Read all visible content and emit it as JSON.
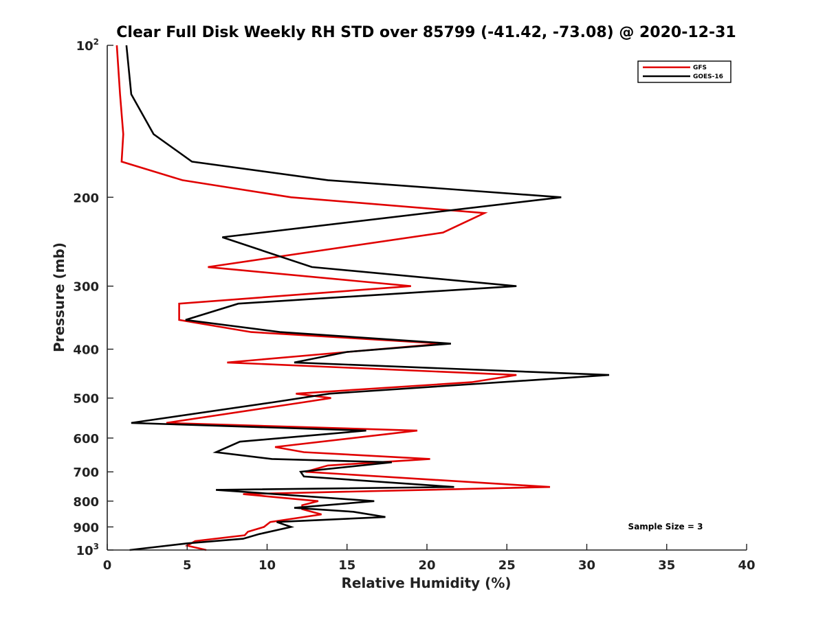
{
  "chart_data": {
    "type": "line",
    "title": "Clear Full Disk Weekly RH STD over 85799 (-41.42, -73.08) @ 2020-12-31",
    "xlabel": "Relative Humidity (%)",
    "ylabel": "Pressure (mb)",
    "xlim": [
      0,
      40
    ],
    "ylim": [
      100,
      1000
    ],
    "yscale": "log",
    "y_reversed": true,
    "x_ticks": [
      "0",
      "5",
      "10",
      "15",
      "20",
      "25",
      "30",
      "35",
      "40"
    ],
    "y_ticks": [
      {
        "value": 100,
        "base": "10",
        "exp": "2"
      },
      {
        "value": 200,
        "label": "200"
      },
      {
        "value": 300,
        "label": "300"
      },
      {
        "value": 400,
        "label": "400"
      },
      {
        "value": 500,
        "label": "500"
      },
      {
        "value": 600,
        "label": "600"
      },
      {
        "value": 700,
        "label": "700"
      },
      {
        "value": 800,
        "label": "800"
      },
      {
        "value": 900,
        "label": "900"
      },
      {
        "value": 1000,
        "base": "10",
        "exp": "3"
      }
    ],
    "grid": false,
    "legend_position": "top-right",
    "annotation": "Sample Size = 3",
    "series": [
      {
        "name": "GFS",
        "color": "#e00000",
        "points": [
          [
            0.6,
            100
          ],
          [
            0.8,
            125
          ],
          [
            1.0,
            150
          ],
          [
            0.9,
            170
          ],
          [
            4.7,
            185
          ],
          [
            11.5,
            200
          ],
          [
            23.6,
            215
          ],
          [
            21.0,
            235
          ],
          [
            6.3,
            275
          ],
          [
            19.0,
            300
          ],
          [
            4.5,
            325
          ],
          [
            4.5,
            350
          ],
          [
            9.0,
            370
          ],
          [
            21.0,
            390
          ],
          [
            7.5,
            425
          ],
          [
            25.6,
            450
          ],
          [
            22.8,
            465
          ],
          [
            11.8,
            490
          ],
          [
            14.0,
            500
          ],
          [
            12.2,
            510
          ],
          [
            3.7,
            560
          ],
          [
            19.4,
            580
          ],
          [
            10.5,
            625
          ],
          [
            12.3,
            640
          ],
          [
            20.2,
            660
          ],
          [
            13.8,
            680
          ],
          [
            12.4,
            700
          ],
          [
            27.7,
            750
          ],
          [
            8.5,
            775
          ],
          [
            13.2,
            800
          ],
          [
            12.2,
            815
          ],
          [
            12.2,
            830
          ],
          [
            13.4,
            850
          ],
          [
            10.2,
            880
          ],
          [
            9.8,
            900
          ],
          [
            8.8,
            920
          ],
          [
            8.6,
            935
          ],
          [
            5.5,
            960
          ],
          [
            5.0,
            980
          ],
          [
            6.2,
            1000
          ]
        ]
      },
      {
        "name": "GOES-16",
        "color": "#000000",
        "points": [
          [
            1.2,
            100
          ],
          [
            1.5,
            125
          ],
          [
            2.9,
            150
          ],
          [
            5.3,
            170
          ],
          [
            13.8,
            185
          ],
          [
            28.4,
            200
          ],
          [
            7.2,
            240
          ],
          [
            12.8,
            275
          ],
          [
            25.6,
            300
          ],
          [
            8.2,
            325
          ],
          [
            4.9,
            350
          ],
          [
            10.8,
            370
          ],
          [
            21.5,
            390
          ],
          [
            15.0,
            405
          ],
          [
            11.7,
            425
          ],
          [
            31.4,
            450
          ],
          [
            13.9,
            490
          ],
          [
            10.3,
            510
          ],
          [
            1.5,
            560
          ],
          [
            16.2,
            580
          ],
          [
            8.3,
            610
          ],
          [
            6.8,
            640
          ],
          [
            10.3,
            660
          ],
          [
            17.8,
            670
          ],
          [
            12.1,
            700
          ],
          [
            12.3,
            715
          ],
          [
            21.7,
            750
          ],
          [
            6.8,
            760
          ],
          [
            16.7,
            800
          ],
          [
            11.7,
            825
          ],
          [
            15.4,
            840
          ],
          [
            17.4,
            860
          ],
          [
            10.6,
            880
          ],
          [
            11.5,
            900
          ],
          [
            9.5,
            930
          ],
          [
            8.5,
            950
          ],
          [
            5.0,
            970
          ],
          [
            1.4,
            1000
          ]
        ]
      }
    ]
  }
}
